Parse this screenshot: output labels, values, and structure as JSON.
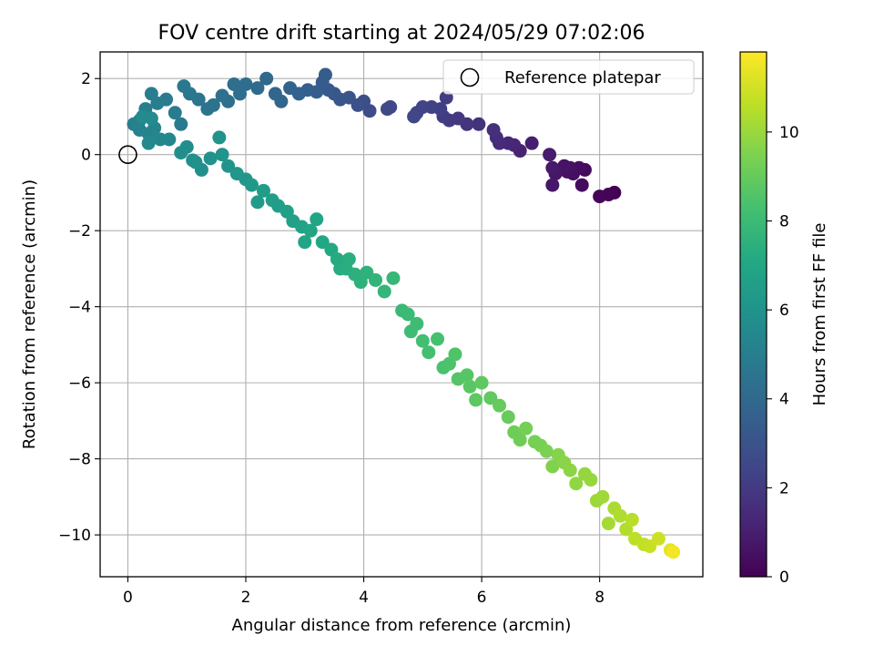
{
  "chart_data": {
    "type": "scatter",
    "title": "FOV centre drift starting at 2024/05/29 07:02:06",
    "xlabel": "Angular distance from reference (arcmin)",
    "ylabel": "Rotation from reference (arcmin)",
    "xlim": [
      -0.47,
      9.75
    ],
    "ylim": [
      -11.1,
      2.7
    ],
    "xticks": [
      0,
      2,
      4,
      6,
      8
    ],
    "yticks": [
      2,
      0,
      -2,
      -4,
      -6,
      -8,
      -10
    ],
    "ytick_labels": [
      "2",
      "0",
      "−2",
      "−4",
      "−6",
      "−8",
      "−10"
    ],
    "grid": true,
    "legend": {
      "position": "upper-right",
      "entries": [
        {
          "label": "Reference platepar",
          "marker": "open-circle"
        }
      ]
    },
    "reference_point": {
      "x": 0,
      "y": 0
    },
    "colorbar": {
      "label": "Hours from first FF file",
      "colormap": "viridis",
      "range": [
        0,
        11.8
      ],
      "ticks": [
        0,
        2,
        4,
        6,
        8,
        10
      ]
    },
    "series": [
      {
        "color_by": "hours",
        "points": [
          [
            8.25,
            -1.0,
            0.0
          ],
          [
            8.15,
            -1.05,
            0.1
          ],
          [
            8.0,
            -1.1,
            0.15
          ],
          [
            7.75,
            -0.4,
            0.3
          ],
          [
            7.7,
            -0.8,
            0.35
          ],
          [
            7.65,
            -0.35,
            0.4
          ],
          [
            7.55,
            -0.5,
            0.45
          ],
          [
            7.5,
            -0.35,
            0.5
          ],
          [
            7.45,
            -0.45,
            0.55
          ],
          [
            7.4,
            -0.3,
            0.6
          ],
          [
            7.25,
            -0.5,
            0.7
          ],
          [
            7.2,
            -0.8,
            0.75
          ],
          [
            7.2,
            -0.35,
            0.8
          ],
          [
            7.15,
            0.0,
            0.9
          ],
          [
            6.85,
            0.3,
            1.0
          ],
          [
            6.65,
            0.1,
            1.1
          ],
          [
            6.55,
            0.25,
            1.2
          ],
          [
            6.45,
            0.3,
            1.3
          ],
          [
            6.3,
            0.3,
            1.4
          ],
          [
            6.25,
            0.45,
            1.5
          ],
          [
            6.2,
            0.65,
            1.6
          ],
          [
            5.95,
            0.8,
            1.7
          ],
          [
            5.75,
            0.8,
            1.8
          ],
          [
            5.6,
            0.95,
            1.9
          ],
          [
            5.45,
            0.9,
            2.0
          ],
          [
            5.35,
            1.0,
            2.05
          ],
          [
            5.4,
            1.5,
            2.1
          ],
          [
            5.3,
            1.2,
            2.2
          ],
          [
            5.15,
            1.25,
            2.3
          ],
          [
            5.0,
            1.25,
            2.35
          ],
          [
            4.9,
            1.1,
            2.4
          ],
          [
            4.85,
            1.0,
            2.45
          ],
          [
            4.45,
            1.25,
            2.55
          ],
          [
            4.4,
            1.2,
            2.6
          ],
          [
            4.1,
            1.15,
            2.7
          ],
          [
            4.0,
            1.4,
            2.8
          ],
          [
            3.9,
            1.3,
            2.9
          ],
          [
            3.75,
            1.5,
            3.0
          ],
          [
            3.6,
            1.45,
            3.1
          ],
          [
            3.5,
            1.6,
            3.2
          ],
          [
            3.4,
            1.7,
            3.3
          ],
          [
            3.3,
            1.9,
            3.35
          ],
          [
            3.35,
            2.1,
            3.4
          ],
          [
            3.2,
            1.65,
            3.5
          ],
          [
            3.05,
            1.7,
            3.55
          ],
          [
            2.9,
            1.6,
            3.65
          ],
          [
            2.75,
            1.75,
            3.75
          ],
          [
            2.6,
            1.4,
            3.85
          ],
          [
            2.5,
            1.6,
            3.9
          ],
          [
            2.35,
            2.0,
            4.0
          ],
          [
            2.2,
            1.75,
            4.1
          ],
          [
            2.0,
            1.85,
            4.2
          ],
          [
            1.9,
            1.6,
            4.25
          ],
          [
            1.8,
            1.85,
            4.3
          ],
          [
            1.7,
            1.4,
            4.35
          ],
          [
            1.6,
            1.55,
            4.4
          ],
          [
            1.45,
            1.3,
            4.5
          ],
          [
            1.35,
            1.2,
            4.55
          ],
          [
            1.2,
            1.45,
            4.6
          ],
          [
            1.05,
            1.6,
            4.65
          ],
          [
            0.95,
            1.8,
            4.7
          ],
          [
            0.9,
            0.8,
            4.8
          ],
          [
            0.8,
            1.1,
            4.85
          ],
          [
            0.65,
            1.45,
            4.9
          ],
          [
            0.5,
            1.35,
            4.95
          ],
          [
            0.4,
            1.6,
            5.0
          ],
          [
            0.3,
            1.2,
            5.05
          ],
          [
            0.2,
            0.9,
            5.1
          ],
          [
            0.1,
            0.8,
            5.15
          ],
          [
            0.2,
            0.65,
            5.2
          ],
          [
            0.35,
            0.55,
            5.3
          ],
          [
            0.45,
            0.7,
            5.35
          ],
          [
            0.55,
            0.4,
            5.4
          ],
          [
            0.7,
            0.4,
            5.45
          ],
          [
            0.35,
            0.3,
            5.5
          ],
          [
            0.25,
            1.0,
            5.55
          ],
          [
            0.4,
            0.95,
            5.6
          ],
          [
            1.0,
            0.2,
            5.7
          ],
          [
            0.9,
            0.05,
            5.75
          ],
          [
            1.1,
            -0.15,
            5.8
          ],
          [
            1.25,
            -0.4,
            5.85
          ],
          [
            1.15,
            -0.2,
            5.9
          ],
          [
            1.4,
            -0.1,
            5.95
          ],
          [
            1.55,
            0.45,
            6.0
          ],
          [
            1.6,
            0.0,
            6.05
          ],
          [
            1.7,
            -0.3,
            6.1
          ],
          [
            1.85,
            -0.5,
            6.15
          ],
          [
            2.0,
            -0.65,
            6.2
          ],
          [
            2.1,
            -0.8,
            6.3
          ],
          [
            2.2,
            -1.25,
            6.4
          ],
          [
            2.3,
            -0.95,
            6.45
          ],
          [
            2.45,
            -1.2,
            6.5
          ],
          [
            2.55,
            -1.35,
            6.55
          ],
          [
            2.7,
            -1.5,
            6.6
          ],
          [
            2.8,
            -1.75,
            6.7
          ],
          [
            2.95,
            -1.9,
            6.75
          ],
          [
            3.0,
            -2.3,
            6.85
          ],
          [
            3.1,
            -2.0,
            6.9
          ],
          [
            3.2,
            -1.7,
            6.95
          ],
          [
            3.3,
            -2.3,
            7.05
          ],
          [
            3.45,
            -2.5,
            7.1
          ],
          [
            3.55,
            -2.75,
            7.2
          ],
          [
            3.6,
            -3.0,
            7.25
          ],
          [
            3.7,
            -3.0,
            7.35
          ],
          [
            3.75,
            -2.75,
            7.4
          ],
          [
            3.85,
            -3.15,
            7.45
          ],
          [
            3.95,
            -3.35,
            7.5
          ],
          [
            4.05,
            -3.1,
            7.55
          ],
          [
            4.2,
            -3.3,
            7.65
          ],
          [
            4.35,
            -3.6,
            7.75
          ],
          [
            4.5,
            -3.25,
            7.8
          ],
          [
            4.65,
            -4.1,
            7.9
          ],
          [
            4.75,
            -4.2,
            7.95
          ],
          [
            4.8,
            -4.65,
            8.05
          ],
          [
            4.9,
            -4.45,
            8.1
          ],
          [
            5.0,
            -4.9,
            8.2
          ],
          [
            5.1,
            -5.2,
            8.25
          ],
          [
            5.25,
            -4.85,
            8.3
          ],
          [
            5.35,
            -5.6,
            8.4
          ],
          [
            5.45,
            -5.5,
            8.45
          ],
          [
            5.55,
            -5.25,
            8.5
          ],
          [
            5.6,
            -5.9,
            8.6
          ],
          [
            5.75,
            -5.8,
            8.65
          ],
          [
            5.8,
            -6.1,
            8.7
          ],
          [
            5.9,
            -6.45,
            8.8
          ],
          [
            6.0,
            -6.0,
            8.85
          ],
          [
            6.15,
            -6.4,
            8.9
          ],
          [
            6.3,
            -6.6,
            9.0
          ],
          [
            6.45,
            -6.9,
            9.05
          ],
          [
            6.55,
            -7.3,
            9.15
          ],
          [
            6.65,
            -7.5,
            9.2
          ],
          [
            6.75,
            -7.2,
            9.3
          ],
          [
            6.9,
            -7.55,
            9.35
          ],
          [
            7.0,
            -7.65,
            9.4
          ],
          [
            7.1,
            -7.8,
            9.45
          ],
          [
            7.2,
            -8.2,
            9.55
          ],
          [
            7.3,
            -7.9,
            9.6
          ],
          [
            7.4,
            -8.1,
            9.7
          ],
          [
            7.5,
            -8.3,
            9.75
          ],
          [
            7.6,
            -8.65,
            9.85
          ],
          [
            7.75,
            -8.4,
            9.9
          ],
          [
            7.85,
            -8.55,
            9.95
          ],
          [
            7.95,
            -9.1,
            10.05
          ],
          [
            8.05,
            -9.0,
            10.1
          ],
          [
            8.15,
            -9.7,
            10.2
          ],
          [
            8.25,
            -9.3,
            10.3
          ],
          [
            8.35,
            -9.5,
            10.35
          ],
          [
            8.45,
            -9.85,
            10.45
          ],
          [
            8.55,
            -9.6,
            10.55
          ],
          [
            8.6,
            -10.1,
            10.6
          ],
          [
            8.75,
            -10.25,
            10.7
          ],
          [
            8.85,
            -10.3,
            10.8
          ],
          [
            9.0,
            -10.1,
            10.9
          ],
          [
            9.2,
            -10.4,
            11.3
          ],
          [
            9.25,
            -10.45,
            11.6
          ]
        ]
      }
    ]
  }
}
